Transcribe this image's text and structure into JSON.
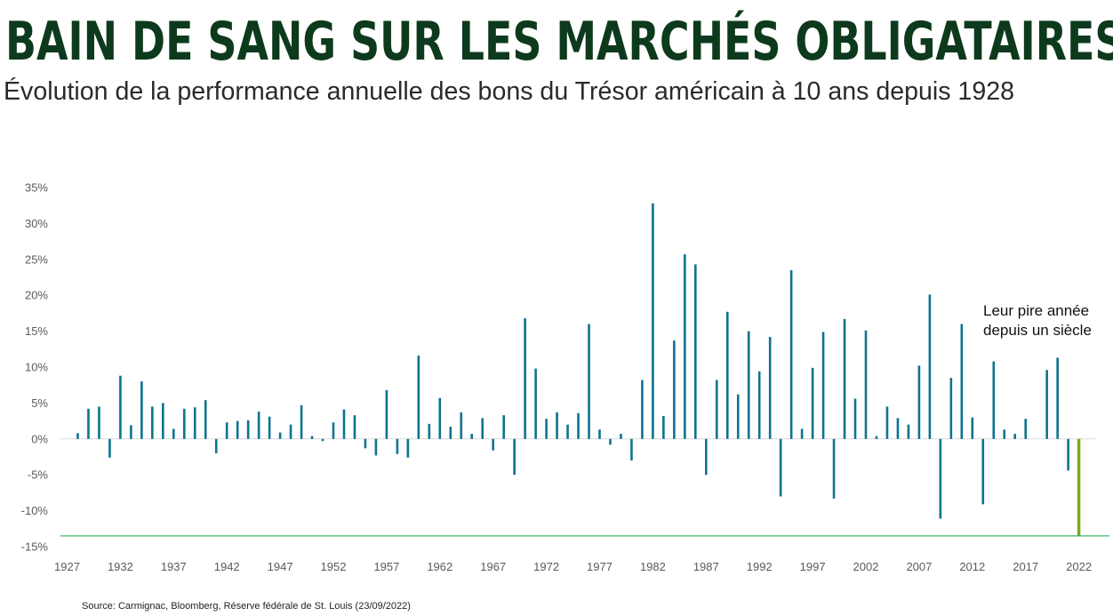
{
  "chart_data": {
    "type": "bar",
    "title": "BAIN DE SANG SUR LES MARCHÉS OBLIGATAIRES",
    "subtitle": "Évolution de la performance annuelle des bons du Trésor américain à 10 ans depuis 1928",
    "source": "Source: Carmignac, Bloomberg, Réserve fédérale de St. Louis (23/09/2022)",
    "annotation": [
      "Leur pire année",
      "depuis un siècle"
    ],
    "xlabel": "",
    "ylabel": "",
    "ylim": [
      -15,
      35
    ],
    "yticks": [
      "35%",
      "30%",
      "25%",
      "20%",
      "15%",
      "10%",
      "5%",
      "0%",
      "-5%",
      "-10%",
      "-15%"
    ],
    "xticks": [
      "1927",
      "1932",
      "1937",
      "1942",
      "1947",
      "1952",
      "1957",
      "1962",
      "1967",
      "1972",
      "1977",
      "1982",
      "1987",
      "1992",
      "1997",
      "2002",
      "2007",
      "2012",
      "2017",
      "2022"
    ],
    "reference_line": -13.5,
    "bar_color": "#0d7390",
    "highlight_color": "#7aaa1e",
    "reference_line_color": "#3fb86a",
    "highlight_year": 2022,
    "x": [
      1928,
      1929,
      1930,
      1931,
      1932,
      1933,
      1934,
      1935,
      1936,
      1937,
      1938,
      1939,
      1940,
      1941,
      1942,
      1943,
      1944,
      1945,
      1946,
      1947,
      1948,
      1949,
      1950,
      1951,
      1952,
      1953,
      1954,
      1955,
      1956,
      1957,
      1958,
      1959,
      1960,
      1961,
      1962,
      1963,
      1964,
      1965,
      1966,
      1967,
      1968,
      1969,
      1970,
      1971,
      1972,
      1973,
      1974,
      1975,
      1976,
      1977,
      1978,
      1979,
      1980,
      1981,
      1982,
      1983,
      1984,
      1985,
      1986,
      1987,
      1988,
      1989,
      1990,
      1991,
      1992,
      1993,
      1994,
      1995,
      1996,
      1997,
      1998,
      1999,
      2000,
      2001,
      2002,
      2003,
      2004,
      2005,
      2006,
      2007,
      2008,
      2009,
      2010,
      2011,
      2012,
      2013,
      2014,
      2015,
      2016,
      2017,
      2018,
      2019,
      2020,
      2021,
      2022
    ],
    "values": [
      0.8,
      4.2,
      4.5,
      -2.6,
      8.8,
      1.9,
      8.0,
      4.5,
      5.0,
      1.4,
      4.2,
      4.4,
      5.4,
      -2.0,
      2.3,
      2.5,
      2.6,
      3.8,
      3.1,
      0.9,
      2.0,
      4.7,
      0.4,
      -0.3,
      2.3,
      4.1,
      3.3,
      -1.3,
      -2.3,
      6.8,
      -2.1,
      -2.6,
      11.6,
      2.1,
      5.7,
      1.7,
      3.7,
      0.7,
      2.9,
      -1.6,
      3.3,
      -5.0,
      16.8,
      9.8,
      2.8,
      3.7,
      2.0,
      3.6,
      16.0,
      1.3,
      -0.8,
      0.7,
      -3.0,
      8.2,
      32.8,
      3.2,
      13.7,
      25.7,
      24.3,
      -5.0,
      8.2,
      17.7,
      6.2,
      15.0,
      9.4,
      14.2,
      -8.0,
      23.5,
      1.4,
      9.9,
      14.9,
      -8.3,
      16.7,
      5.6,
      15.1,
      0.4,
      4.5,
      2.9,
      2.0,
      10.2,
      20.1,
      -11.1,
      8.5,
      16.0,
      3.0,
      -9.1,
      10.8,
      1.3,
      0.7,
      2.8,
      0.0,
      9.6,
      11.3,
      -4.4,
      -13.5
    ]
  }
}
